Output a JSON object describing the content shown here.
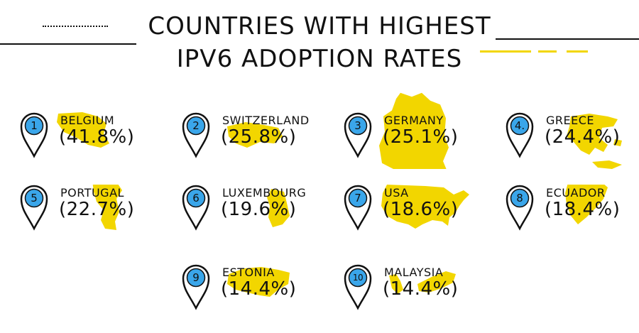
{
  "title": {
    "line1": "COUNTRIES WITH HIGHEST",
    "line2": "IPV6 ADOPTION RATES"
  },
  "colors": {
    "accent": "#f2d600",
    "pin_fill": "#3aa6ea",
    "ink": "#111111"
  },
  "countries": [
    {
      "rank": "1",
      "name": "BELGIUM",
      "pct": "(41.8%)"
    },
    {
      "rank": "2",
      "name": "SWITZERLAND",
      "pct": "(25.8%)"
    },
    {
      "rank": "3",
      "name": "GERMANY",
      "pct": "(25.1%)"
    },
    {
      "rank": "4.",
      "name": "GREECE",
      "pct": "(24.4%)"
    },
    {
      "rank": "5",
      "name": "PORTUGAL",
      "pct": "(22.7%)"
    },
    {
      "rank": "6",
      "name": "LUXEMBOURG",
      "pct": "(19.6%)"
    },
    {
      "rank": "7",
      "name": "USA",
      "pct": "(18.6%)"
    },
    {
      "rank": "8",
      "name": "ECUADOR",
      "pct": "(18.4%)"
    },
    {
      "rank": "9",
      "name": "ESTONIA",
      "pct": "(14.4%)"
    },
    {
      "rank": "10",
      "name": "MALAYSIA",
      "pct": "(14.4%)"
    }
  ]
}
